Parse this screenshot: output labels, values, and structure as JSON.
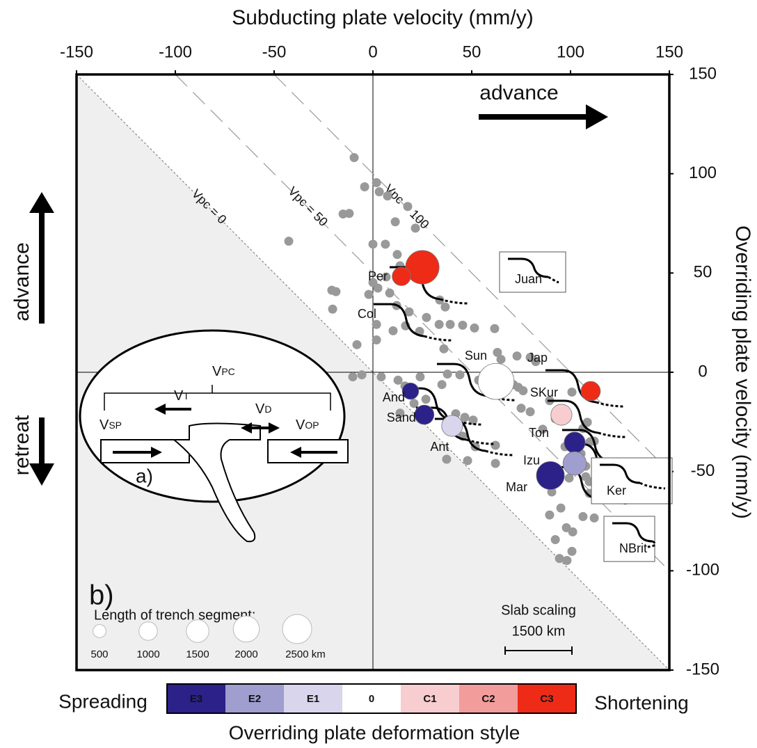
{
  "chart_data": {
    "type": "scatter",
    "x_label": "Subducting plate velocity (mm/y)",
    "y_label": "Overriding plate velocity (mm/y)",
    "xlim": [
      -150,
      150
    ],
    "ylim": [
      -150,
      150
    ],
    "xticks": [
      -150,
      -100,
      -50,
      0,
      50,
      100,
      150
    ],
    "yticks": [
      -150,
      -100,
      -50,
      0,
      50,
      100,
      150
    ],
    "points": {
      "color": "#999999",
      "x": [
        -9.5,
        1.8,
        3.2,
        -4.2,
        -12,
        -15.1,
        7.4,
        11.3,
        17.6,
        21.5,
        -42.6,
        12.3,
        13.7,
        6.3,
        0,
        6.7,
        2.5,
        0,
        -2.1,
        -20.8,
        -18.7,
        -20.4,
        26.4,
        33.8,
        36.6,
        12,
        8.5,
        18.3,
        27.1,
        33.5,
        39.1,
        45.4,
        51.4,
        61.6,
        16.5,
        10.2,
        1.8,
        1.8,
        -8.1,
        23.6,
        35.9,
        63,
        64.8,
        72.9,
        79.6,
        82.4,
        -5.6,
        -10.2,
        4.2,
        12.7,
        16.2,
        23.9,
        34.9,
        37.7,
        44,
        53.5,
        57,
        64.1,
        71.1,
        73.6,
        76,
        26.8,
        20.8,
        13.7,
        41.9,
        46.5,
        50.7,
        38.4,
        45.4,
        51.8,
        62,
        62,
        47.9,
        37.3,
        75,
        79.6,
        89.4,
        100.7,
        92.3,
        85.9,
        97.2,
        108.5,
        106.3,
        109.9,
        112,
        105.3,
        101.8,
        107.7,
        107.7,
        99.3,
        90.5,
        95.1,
        89.4,
        97.9,
        109.5,
        109.5,
        112,
        106.3,
        92.3,
        101.1,
        100.7,
        94.4,
        98.2
      ],
      "y": [
        108.1,
        95.5,
        90.9,
        93.4,
        80,
        79.7,
        88.8,
        75.8,
        83.5,
        72.6,
        66,
        59.3,
        53.6,
        64.5,
        64.5,
        48,
        42.4,
        45.2,
        39.2,
        41.3,
        40.6,
        31.8,
        53.6,
        36.4,
        32.9,
        33.6,
        39.9,
        30.4,
        27.6,
        24.1,
        24.1,
        23.7,
        22.3,
        22,
        23.4,
        20.9,
        24.1,
        16.3,
        13.9,
        20.6,
        11.8,
        10,
        6.5,
        8.2,
        7.5,
        5.4,
        -1.3,
        -2.3,
        -2.3,
        -4,
        -6.9,
        -2.3,
        -6.2,
        -0.9,
        -1.3,
        -4,
        -6.5,
        -4.8,
        -6.2,
        -7.6,
        -9.3,
        -13.6,
        -15.7,
        -20.6,
        -20.9,
        -22.7,
        -24.1,
        -29.7,
        -32.2,
        -37.5,
        -36.8,
        -45.9,
        -44.5,
        -43.8,
        -18.1,
        -19.9,
        -14.3,
        -10,
        -23.4,
        -28.7,
        -37.5,
        -25.2,
        -28.3,
        -35,
        -34.7,
        -41,
        -45.2,
        -47.3,
        -52.6,
        -53.3,
        -60.3,
        -68.4,
        -71.9,
        -78.3,
        -55.1,
        -61,
        -73.4,
        -72.7,
        -84.3,
        -80.4,
        -90.2,
        -93.8,
        -94.8
      ]
    },
    "zones": {
      "names": [
        "Per",
        "Col",
        "And",
        "Sand",
        "Ant",
        "Sun",
        "Jap",
        "SKur",
        "Ton",
        "Izu",
        "Mar"
      ],
      "x": [
        25,
        14.4,
        19,
        26,
        40.1,
        62.3,
        110.2,
        95.4,
        102.1,
        102.1,
        89.8
      ],
      "y": [
        52.9,
        48.3,
        -9.5,
        -21.4,
        -27,
        -4.6,
        -9.5,
        -21.4,
        -35.4,
        -45.9,
        -52
      ],
      "trench_length": [
        3300,
        1000,
        800,
        1100,
        1300,
        3800,
        1100,
        1300,
        1300,
        1600,
        2300
      ],
      "style": [
        "C3",
        "C3",
        "E3",
        "E3",
        "E1",
        "0",
        "C3",
        "C1",
        "E3",
        "E2",
        "E3"
      ]
    },
    "boxed_labels": [
      "Juan",
      "Ker",
      "NBrit"
    ],
    "reference_lines": {
      "labels": [
        "Vpc = 0",
        "Vpc = 50",
        "Vpc = 100"
      ],
      "values": [
        0,
        50,
        100
      ]
    },
    "size_legend": {
      "title": "Length of trench segment:",
      "values": [
        500,
        1000,
        1500,
        2000,
        2500
      ],
      "value_labels": [
        "500",
        "1000",
        "1500",
        "2000",
        "2500 km"
      ]
    },
    "scale_bar": {
      "title": "Slab scaling",
      "value": 1500,
      "label": "1500 km"
    },
    "colorbar": {
      "title": "Overriding plate deformation style",
      "left_label": "Spreading",
      "right_label": "Shortening",
      "categories": [
        "E3",
        "E2",
        "E1",
        "0",
        "C1",
        "C2",
        "C3"
      ],
      "colors": [
        "#2b2189",
        "#a09dcf",
        "#d8d5ec",
        "#ffffff",
        "#f8cdd0",
        "#f29c9c",
        "#ee2b17"
      ]
    },
    "annotations": {
      "x_advance": "advance",
      "y_advance": "advance",
      "y_retreat": "retreat",
      "panel": "b)"
    },
    "inset": {
      "panel": "a)",
      "vpc": [
        "V",
        "PC"
      ],
      "vsp": [
        "V",
        "SP"
      ],
      "vt": [
        "V",
        "T"
      ],
      "vd": [
        "V",
        "D"
      ],
      "vop": [
        "V",
        "OP"
      ]
    }
  }
}
